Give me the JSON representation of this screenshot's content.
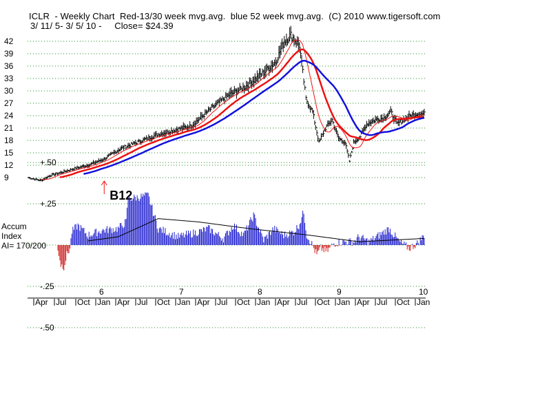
{
  "header": {
    "line1": "ICLR  - Weekly Chart  Red-13/30 week mvg.avg.  blue 52 week mvg.avg.  (C) 2010 www.tigersoft.com",
    "line2": "3/ 11/ 5- 3/ 5/ 10 -     Close= $24.39"
  },
  "colors": {
    "red_ma": "#ee1111",
    "blue_ma": "#1111dd",
    "accum_positive": "#1a1acc",
    "accum_negative": "#cc1111",
    "grid": "#228822"
  },
  "chart_data": [
    {
      "type": "line",
      "title": "",
      "ylabel": "",
      "yticks": [
        9,
        12,
        15,
        18,
        21,
        24,
        27,
        30,
        33,
        36,
        39,
        42
      ],
      "ylim": [
        8.5,
        45
      ],
      "x_year_labels": [
        "6",
        "7",
        "8",
        "9",
        "10"
      ],
      "x_month_labels": [
        "Apr",
        "Jul",
        "Oct",
        "Jan",
        "Apr",
        "Jul",
        "Oct",
        "Jan",
        "Apr",
        "Jul",
        "Oct",
        "Jan",
        "Apr",
        "Jul",
        "Oct",
        "Jan",
        "Apr",
        "Jul",
        "Oct",
        "Jan"
      ],
      "grid": true,
      "anchors_price": [
        [
          0,
          9.0
        ],
        [
          6,
          8.6
        ],
        [
          12,
          8.3
        ],
        [
          20,
          9.5
        ],
        [
          30,
          10.2
        ],
        [
          40,
          11.0
        ],
        [
          55,
          12.0
        ],
        [
          70,
          13.5
        ],
        [
          85,
          16.0
        ],
        [
          100,
          17.5
        ],
        [
          120,
          19.5
        ],
        [
          150,
          21.5
        ],
        [
          170,
          26.0
        ],
        [
          185,
          29.0
        ],
        [
          200,
          31.0
        ],
        [
          215,
          34.0
        ],
        [
          228,
          37.0
        ],
        [
          236,
          42.0
        ],
        [
          242,
          43.5
        ],
        [
          250,
          41.0
        ],
        [
          256,
          28.0
        ],
        [
          262,
          25.0
        ],
        [
          268,
          17.5
        ],
        [
          274,
          21.0
        ],
        [
          280,
          23.0
        ],
        [
          286,
          18.5
        ],
        [
          292,
          17.5
        ],
        [
          296,
          13.0
        ],
        [
          300,
          17.5
        ],
        [
          306,
          19.0
        ],
        [
          312,
          22.0
        ],
        [
          320,
          23.0
        ],
        [
          328,
          23.5
        ],
        [
          334,
          25.0
        ],
        [
          340,
          22.0
        ],
        [
          346,
          23.0
        ],
        [
          352,
          24.0
        ],
        [
          358,
          24.5
        ],
        [
          365,
          24.4
        ]
      ],
      "series": [
        {
          "name": "Red-13/30 week mvg.avg.",
          "period": 30
        },
        {
          "name": "",
          "period": 13
        },
        {
          "name": "blue 52 week mvg.avg.",
          "period": 52
        }
      ],
      "annotations": [
        {
          "label": "B12",
          "week": 70
        }
      ]
    },
    {
      "type": "bar",
      "title": "",
      "yticks": [
        "+.50",
        "+.25",
        "-.25",
        "-.50"
      ],
      "ylim": [
        -0.5,
        0.5
      ],
      "side_label": [
        "Accum",
        "Index",
        "AI= 170/200"
      ],
      "anchors_ai": [
        [
          0,
          -0.02
        ],
        [
          3,
          -0.12
        ],
        [
          6,
          -0.13
        ],
        [
          9,
          -0.06
        ],
        [
          12,
          -0.02
        ],
        [
          14,
          0.08
        ],
        [
          20,
          0.12
        ],
        [
          30,
          0.06
        ],
        [
          45,
          0.09
        ],
        [
          60,
          0.1
        ],
        [
          68,
          0.14
        ],
        [
          70,
          0.28
        ],
        [
          80,
          0.29
        ],
        [
          90,
          0.3
        ],
        [
          100,
          0.1
        ],
        [
          120,
          0.05
        ],
        [
          140,
          0.08
        ],
        [
          150,
          0.1
        ],
        [
          165,
          0.04
        ],
        [
          175,
          0.12
        ],
        [
          185,
          0.06
        ],
        [
          195,
          0.18
        ],
        [
          205,
          0.03
        ],
        [
          215,
          0.1
        ],
        [
          225,
          0.06
        ],
        [
          235,
          0.08
        ],
        [
          240,
          0.12
        ],
        [
          245,
          0.2
        ],
        [
          248,
          0.06
        ],
        [
          252,
          0.02
        ],
        [
          258,
          -0.06
        ],
        [
          262,
          -0.02
        ],
        [
          268,
          -0.04
        ],
        [
          275,
          0.01
        ],
        [
          285,
          0.02
        ],
        [
          295,
          0.02
        ],
        [
          300,
          0.05
        ],
        [
          310,
          0.02
        ],
        [
          320,
          0.06
        ],
        [
          330,
          0.1
        ],
        [
          340,
          0.02
        ],
        [
          350,
          -0.02
        ],
        [
          358,
          0.01
        ],
        [
          365,
          0.06
        ]
      ],
      "anchors_ma": [
        [
          0,
          0.0
        ],
        [
          60,
          0.05
        ],
        [
          100,
          0.16
        ],
        [
          140,
          0.14
        ],
        [
          190,
          0.1
        ],
        [
          250,
          0.06
        ],
        [
          300,
          0.02
        ],
        [
          365,
          0.04
        ]
      ]
    }
  ]
}
